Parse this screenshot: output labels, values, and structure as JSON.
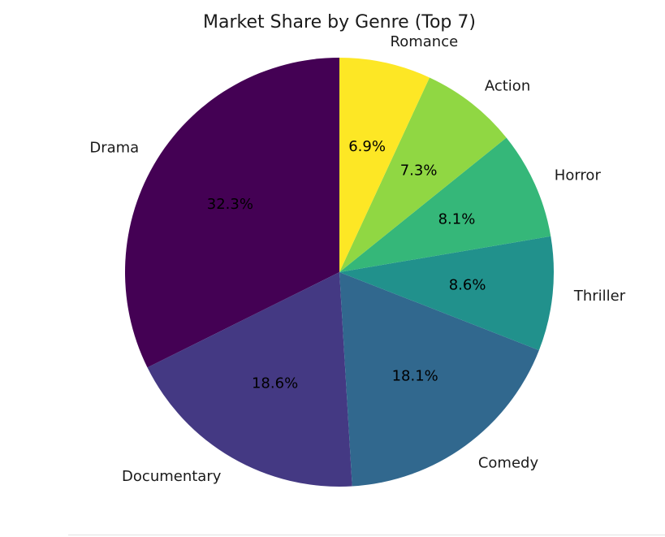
{
  "chart_data": {
    "type": "pie",
    "title": "Market Share by Genre (Top 7)",
    "categories": [
      "Drama",
      "Documentary",
      "Comedy",
      "Thriller",
      "Horror",
      "Action",
      "Romance"
    ],
    "values": [
      32.3,
      18.6,
      18.1,
      8.6,
      8.1,
      7.3,
      6.9
    ],
    "percent_labels": [
      "32.3%",
      "18.6%",
      "18.1%",
      "8.6%",
      "8.1%",
      "7.3%",
      "6.9%"
    ],
    "colors": [
      "#440154",
      "#443983",
      "#31688e",
      "#21918c",
      "#35b779",
      "#90d743",
      "#fde725"
    ],
    "start_angle_deg": 90,
    "direction": "counterclockwise",
    "legend": "none"
  }
}
